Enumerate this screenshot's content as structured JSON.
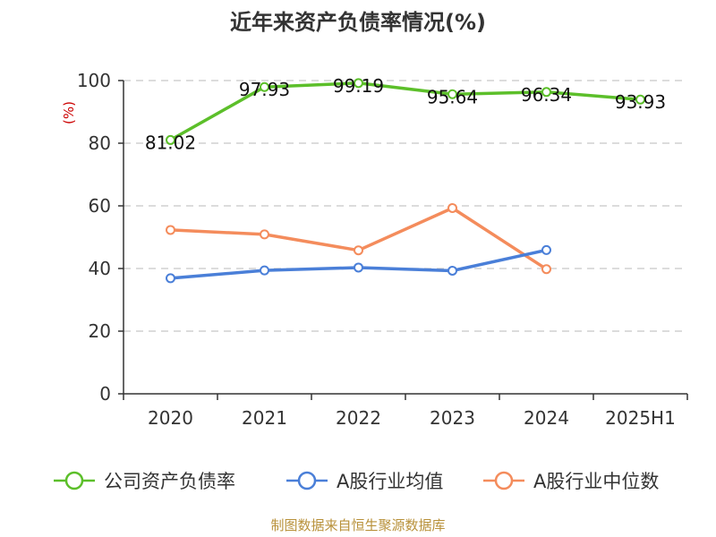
{
  "chart_data": {
    "type": "line",
    "title": "近年来资产负债率情况(%)",
    "ylabel": "(%)",
    "xlabel": "",
    "categories": [
      "2020",
      "2021",
      "2022",
      "2023",
      "2024",
      "2025H1"
    ],
    "ylim": [
      0,
      100
    ],
    "yticks": [
      0,
      20,
      40,
      60,
      80,
      100
    ],
    "grid": true,
    "legend_position": "bottom",
    "series": [
      {
        "name": "公司资产负债率",
        "color": "#5cbf2a",
        "values": [
          81.02,
          97.93,
          99.19,
          95.64,
          96.34,
          93.93
        ],
        "labels": [
          "81.02",
          "97.93",
          "99.19",
          "95.64",
          "96.34",
          "93.93"
        ]
      },
      {
        "name": "A股行业均值",
        "color": "#4a7fd8",
        "values": [
          36.9,
          39.4,
          40.3,
          39.3,
          45.9,
          null
        ]
      },
      {
        "name": "A股行业中位数",
        "color": "#f48c5c",
        "values": [
          52.3,
          50.9,
          45.8,
          59.3,
          39.8,
          null
        ]
      }
    ]
  },
  "source": "制图数据来自恒生聚源数据库"
}
